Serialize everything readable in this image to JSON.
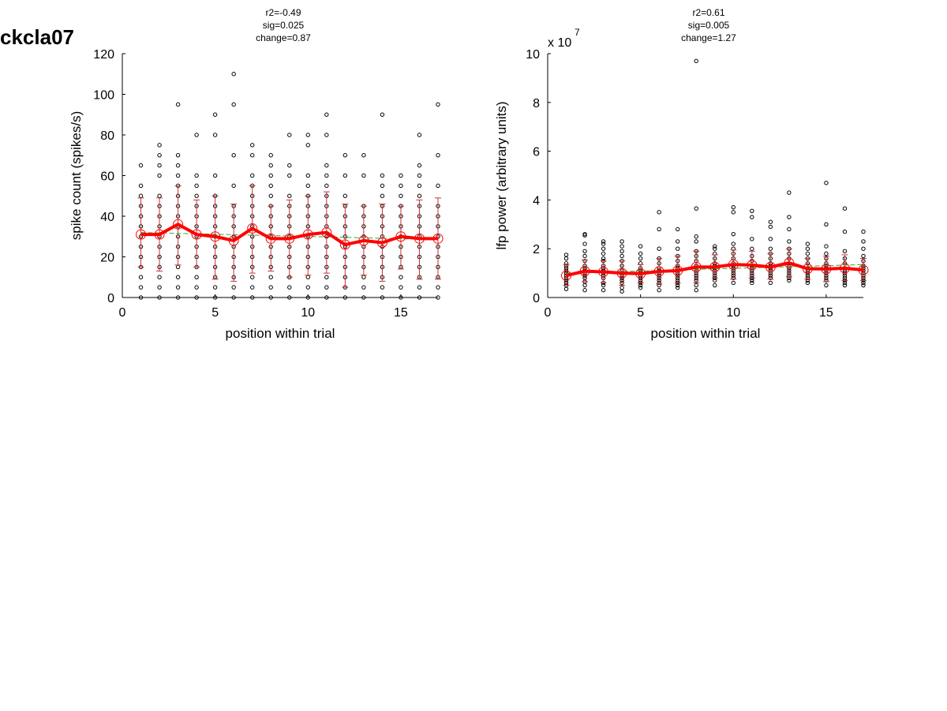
{
  "figure_label": "ckcla07",
  "chart_data": [
    {
      "type": "scatter",
      "stats": [
        "r2=-0.49",
        "sig=0.025",
        "change=0.87"
      ],
      "xlabel": "position within trial",
      "ylabel": "spike count (spikes/s)",
      "xlim": [
        0,
        17
      ],
      "ylim": [
        0,
        120
      ],
      "xticks": [
        0,
        5,
        10,
        15
      ],
      "yticks": [
        0,
        20,
        40,
        60,
        80,
        100,
        120
      ],
      "exponent_label": "",
      "colors": {
        "points": "#000000",
        "mean": "#ff0000",
        "errorbar": "#cc3333",
        "trend": "#33aa33"
      },
      "trials": [
        {
          "x": 1,
          "values": [
            0,
            5,
            10,
            15,
            20,
            25,
            30,
            35,
            40,
            45,
            50,
            55,
            65
          ],
          "mean": 31,
          "sd_low": 15,
          "sd_high": 49
        },
        {
          "x": 2,
          "values": [
            0,
            5,
            10,
            15,
            20,
            25,
            30,
            35,
            40,
            45,
            50,
            60,
            65,
            70,
            75
          ],
          "mean": 31,
          "sd_low": 13,
          "sd_high": 49
        },
        {
          "x": 3,
          "values": [
            0,
            5,
            10,
            15,
            20,
            25,
            30,
            35,
            40,
            45,
            50,
            55,
            60,
            65,
            70,
            95
          ],
          "mean": 36,
          "sd_low": 16,
          "sd_high": 55
        },
        {
          "x": 4,
          "values": [
            0,
            5,
            10,
            15,
            20,
            25,
            30,
            35,
            40,
            45,
            50,
            55,
            60,
            80
          ],
          "mean": 31,
          "sd_low": 15,
          "sd_high": 48
        },
        {
          "x": 5,
          "values": [
            0,
            5,
            10,
            15,
            20,
            25,
            30,
            35,
            40,
            45,
            50,
            60,
            80,
            90
          ],
          "mean": 30,
          "sd_low": 9,
          "sd_high": 50
        },
        {
          "x": 6,
          "values": [
            0,
            5,
            10,
            15,
            20,
            25,
            30,
            35,
            40,
            45,
            55,
            70,
            95,
            110
          ],
          "mean": 28,
          "sd_low": 8,
          "sd_high": 46
        },
        {
          "x": 7,
          "values": [
            0,
            5,
            10,
            15,
            20,
            25,
            30,
            35,
            40,
            45,
            50,
            55,
            60,
            70,
            75
          ],
          "mean": 34,
          "sd_low": 12,
          "sd_high": 55
        },
        {
          "x": 8,
          "values": [
            0,
            5,
            10,
            15,
            20,
            25,
            30,
            35,
            40,
            45,
            50,
            55,
            60,
            65,
            70
          ],
          "mean": 29,
          "sd_low": 13,
          "sd_high": 45
        },
        {
          "x": 9,
          "values": [
            0,
            5,
            10,
            15,
            20,
            25,
            30,
            35,
            40,
            45,
            50,
            60,
            65,
            80
          ],
          "mean": 29,
          "sd_low": 10,
          "sd_high": 48
        },
        {
          "x": 10,
          "values": [
            0,
            5,
            10,
            15,
            20,
            25,
            30,
            35,
            40,
            45,
            50,
            55,
            60,
            75,
            80
          ],
          "mean": 31,
          "sd_low": 11,
          "sd_high": 50
        },
        {
          "x": 11,
          "values": [
            0,
            5,
            10,
            15,
            20,
            25,
            30,
            35,
            40,
            45,
            50,
            55,
            60,
            65,
            80,
            90
          ],
          "mean": 32,
          "sd_low": 12,
          "sd_high": 52
        },
        {
          "x": 12,
          "values": [
            0,
            5,
            10,
            15,
            20,
            25,
            30,
            35,
            40,
            45,
            50,
            60,
            70
          ],
          "mean": 26,
          "sd_low": 5,
          "sd_high": 46
        },
        {
          "x": 13,
          "values": [
            0,
            5,
            10,
            15,
            20,
            25,
            30,
            35,
            40,
            45,
            60,
            70
          ],
          "mean": 28,
          "sd_low": 11,
          "sd_high": 45
        },
        {
          "x": 14,
          "values": [
            0,
            5,
            10,
            15,
            20,
            25,
            30,
            35,
            40,
            45,
            50,
            55,
            60,
            90
          ],
          "mean": 27,
          "sd_low": 8,
          "sd_high": 46
        },
        {
          "x": 15,
          "values": [
            0,
            5,
            10,
            15,
            20,
            25,
            30,
            35,
            40,
            45,
            50,
            55,
            60
          ],
          "mean": 30,
          "sd_low": 14,
          "sd_high": 45
        },
        {
          "x": 16,
          "values": [
            0,
            5,
            10,
            15,
            20,
            25,
            30,
            35,
            40,
            45,
            50,
            55,
            60,
            65,
            80
          ],
          "mean": 29,
          "sd_low": 9,
          "sd_high": 48
        },
        {
          "x": 17,
          "values": [
            0,
            5,
            10,
            15,
            20,
            25,
            30,
            35,
            40,
            45,
            55,
            70,
            95
          ],
          "mean": 29,
          "sd_low": 9,
          "sd_high": 49
        }
      ],
      "trend": {
        "x": [
          1,
          17
        ],
        "y": [
          32,
          28.5
        ]
      }
    },
    {
      "type": "scatter",
      "stats": [
        "r2=0.61",
        "sig=0.005",
        "change=1.27"
      ],
      "xlabel": "position within trial",
      "ylabel": "lfp power (arbitrary units)",
      "xlim": [
        0,
        17
      ],
      "ylim": [
        0,
        10
      ],
      "xticks": [
        0,
        5,
        10,
        15
      ],
      "yticks": [
        0,
        2,
        4,
        6,
        8,
        10
      ],
      "exponent_label": "x 10",
      "exponent_power": "7",
      "colors": {
        "points": "#000000",
        "mean": "#ff0000",
        "errorbar": "#cc3333",
        "trend": "#33aa33"
      },
      "trials": [
        {
          "x": 1,
          "values": [
            0.35,
            0.5,
            0.6,
            0.7,
            0.8,
            0.9,
            1.0,
            1.1,
            1.2,
            1.3,
            1.4,
            1.6,
            1.75
          ],
          "mean": 0.9,
          "sd_low": 0.5,
          "sd_high": 1.35
        },
        {
          "x": 2,
          "values": [
            0.3,
            0.5,
            0.65,
            0.8,
            0.9,
            1.0,
            1.1,
            1.2,
            1.3,
            1.5,
            1.7,
            1.9,
            2.2,
            2.55,
            2.6
          ],
          "mean": 1.08,
          "sd_low": 0.65,
          "sd_high": 1.55
        },
        {
          "x": 3,
          "values": [
            0.3,
            0.5,
            0.6,
            0.8,
            0.9,
            1.0,
            1.1,
            1.2,
            1.3,
            1.5,
            1.6,
            1.8,
            2.0,
            2.2,
            2.3
          ],
          "mean": 1.05,
          "sd_low": 0.6,
          "sd_high": 1.5
        },
        {
          "x": 4,
          "values": [
            0.25,
            0.4,
            0.6,
            0.7,
            0.8,
            0.9,
            1.0,
            1.1,
            1.3,
            1.5,
            1.7,
            1.9,
            2.1,
            2.3
          ],
          "mean": 1.0,
          "sd_low": 0.5,
          "sd_high": 1.5
        },
        {
          "x": 5,
          "values": [
            0.4,
            0.5,
            0.6,
            0.7,
            0.8,
            0.9,
            1.0,
            1.1,
            1.2,
            1.4,
            1.6,
            1.8,
            2.1
          ],
          "mean": 0.98,
          "sd_low": 0.6,
          "sd_high": 1.35
        },
        {
          "x": 6,
          "values": [
            0.3,
            0.5,
            0.6,
            0.7,
            0.8,
            0.9,
            1.0,
            1.1,
            1.2,
            1.4,
            1.6,
            2.0,
            2.8,
            3.5
          ],
          "mean": 1.07,
          "sd_low": 0.55,
          "sd_high": 1.6
        },
        {
          "x": 7,
          "values": [
            0.4,
            0.5,
            0.6,
            0.7,
            0.8,
            0.9,
            1.0,
            1.1,
            1.2,
            1.3,
            1.5,
            1.7,
            2.0,
            2.3,
            2.8
          ],
          "mean": 1.1,
          "sd_low": 0.6,
          "sd_high": 1.7
        },
        {
          "x": 8,
          "values": [
            0.3,
            0.5,
            0.7,
            0.8,
            0.9,
            1.0,
            1.1,
            1.2,
            1.3,
            1.5,
            1.7,
            1.9,
            2.3,
            2.5,
            3.65,
            9.7
          ],
          "mean": 1.25,
          "sd_low": 0.6,
          "sd_high": 1.9
        },
        {
          "x": 9,
          "values": [
            0.5,
            0.7,
            0.8,
            0.9,
            1.0,
            1.1,
            1.2,
            1.3,
            1.4,
            1.6,
            1.8,
            2.0,
            2.1
          ],
          "mean": 1.25,
          "sd_low": 0.8,
          "sd_high": 1.75
        },
        {
          "x": 10,
          "values": [
            0.6,
            0.8,
            0.9,
            1.0,
            1.1,
            1.2,
            1.3,
            1.4,
            1.6,
            1.8,
            2.0,
            2.2,
            2.6,
            3.5,
            3.7
          ],
          "mean": 1.35,
          "sd_low": 0.75,
          "sd_high": 1.95
        },
        {
          "x": 11,
          "values": [
            0.6,
            0.7,
            0.8,
            0.9,
            1.0,
            1.1,
            1.2,
            1.3,
            1.5,
            1.7,
            2.0,
            2.4,
            3.3,
            3.55
          ],
          "mean": 1.33,
          "sd_low": 0.8,
          "sd_high": 1.9
        },
        {
          "x": 12,
          "values": [
            0.6,
            0.8,
            0.9,
            1.0,
            1.1,
            1.2,
            1.3,
            1.4,
            1.6,
            1.8,
            2.0,
            2.4,
            2.9,
            3.1
          ],
          "mean": 1.25,
          "sd_low": 0.75,
          "sd_high": 1.8
        },
        {
          "x": 13,
          "values": [
            0.7,
            0.8,
            0.9,
            1.0,
            1.1,
            1.2,
            1.3,
            1.4,
            1.6,
            1.8,
            2.0,
            2.3,
            2.8,
            3.3,
            4.3
          ],
          "mean": 1.42,
          "sd_low": 0.85,
          "sd_high": 2.0
        },
        {
          "x": 14,
          "values": [
            0.6,
            0.7,
            0.8,
            0.9,
            1.0,
            1.1,
            1.2,
            1.4,
            1.6,
            1.8,
            2.0,
            2.2
          ],
          "mean": 1.18,
          "sd_low": 0.75,
          "sd_high": 1.6
        },
        {
          "x": 15,
          "values": [
            0.5,
            0.7,
            0.8,
            0.9,
            1.0,
            1.1,
            1.2,
            1.3,
            1.4,
            1.6,
            1.8,
            2.1,
            3.0,
            4.7
          ],
          "mean": 1.17,
          "sd_low": 0.65,
          "sd_high": 1.7
        },
        {
          "x": 16,
          "values": [
            0.5,
            0.6,
            0.7,
            0.8,
            0.9,
            1.0,
            1.1,
            1.2,
            1.4,
            1.6,
            1.9,
            2.7,
            3.65
          ],
          "mean": 1.2,
          "sd_low": 0.7,
          "sd_high": 1.75
        },
        {
          "x": 17,
          "values": [
            0.5,
            0.6,
            0.7,
            0.8,
            0.9,
            1.0,
            1.1,
            1.2,
            1.3,
            1.5,
            1.7,
            2.0,
            2.3,
            2.7
          ],
          "mean": 1.13,
          "sd_low": 0.7,
          "sd_high": 1.6
        }
      ],
      "trend": {
        "x": [
          1,
          17
        ],
        "y": [
          1.0,
          1.35
        ]
      }
    }
  ]
}
